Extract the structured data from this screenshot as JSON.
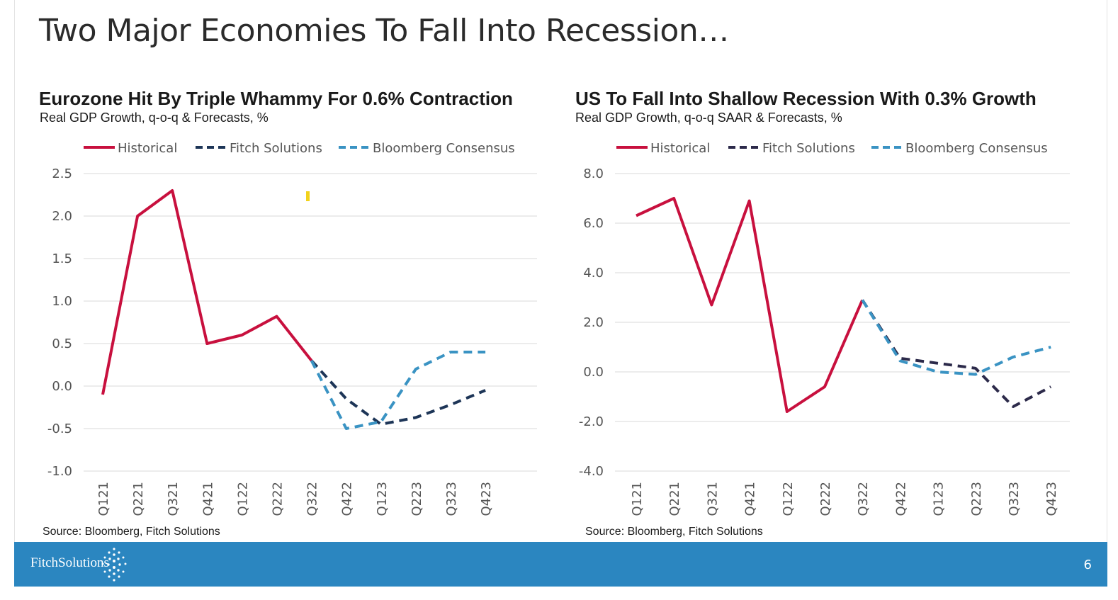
{
  "slide": {
    "title": "Two Major Economies To Fall Into Recession…",
    "page_number": "6",
    "brand": "FitchSolutions"
  },
  "colors": {
    "historical": "#c8103e",
    "fitch_eu": "#1d3557",
    "fitch_us": "#2c2a4a",
    "bloomberg": "#3a93c3",
    "footer": "#2b86c0"
  },
  "chart_data": [
    {
      "type": "line",
      "title": "Eurozone Hit By Triple Whammy For 0.6% Contraction",
      "subtitle": "Real GDP Growth, q-o-q & Forecasts, %",
      "source": "Source: Bloomberg, Fitch Solutions",
      "categories": [
        "Q121",
        "Q221",
        "Q321",
        "Q421",
        "Q122",
        "Q222",
        "Q322",
        "Q422",
        "Q123",
        "Q223",
        "Q323",
        "Q423"
      ],
      "ylim": [
        -1.0,
        2.5
      ],
      "yticks": [
        "2.5",
        "2.0",
        "1.5",
        "1.0",
        "0.5",
        "0.0",
        "-0.5",
        "-1.0"
      ],
      "ytick_values": [
        2.5,
        2.0,
        1.5,
        1.0,
        0.5,
        0.0,
        -0.5,
        -1.0
      ],
      "legend_position": "top",
      "grid": true,
      "series": [
        {
          "name": "Historical",
          "style": "solid",
          "color_key": "historical",
          "values": [
            -0.1,
            2.0,
            2.3,
            0.5,
            0.6,
            0.82,
            0.3,
            null,
            null,
            null,
            null,
            null
          ]
        },
        {
          "name": "Fitch Solutions",
          "style": "dashed",
          "color_key": "fitch_eu",
          "values": [
            null,
            null,
            null,
            null,
            null,
            null,
            0.3,
            -0.15,
            -0.45,
            -0.37,
            -0.22,
            -0.05
          ]
        },
        {
          "name": "Bloomberg Consensus",
          "style": "dashed",
          "color_key": "bloomberg",
          "values": [
            null,
            null,
            null,
            null,
            null,
            null,
            0.3,
            -0.5,
            -0.42,
            0.2,
            0.4,
            0.4
          ]
        }
      ]
    },
    {
      "type": "line",
      "title": "US To Fall Into Shallow Recession With 0.3% Growth",
      "subtitle": "Real GDP Growth, q-o-q SAAR & Forecasts, %",
      "source": "Source: Bloomberg, Fitch Solutions",
      "categories": [
        "Q121",
        "Q221",
        "Q321",
        "Q421",
        "Q122",
        "Q222",
        "Q322",
        "Q422",
        "Q123",
        "Q223",
        "Q323",
        "Q423"
      ],
      "ylim": [
        -4.0,
        8.0
      ],
      "yticks": [
        "8.0",
        "6.0",
        "4.0",
        "2.0",
        "0.0",
        "-2.0",
        "-4.0"
      ],
      "ytick_values": [
        8.0,
        6.0,
        4.0,
        2.0,
        0.0,
        -2.0,
        -4.0
      ],
      "legend_position": "top",
      "grid": true,
      "series": [
        {
          "name": "Historical",
          "style": "solid",
          "color_key": "historical",
          "values": [
            6.3,
            7.0,
            2.7,
            6.9,
            -1.6,
            -0.6,
            2.9,
            null,
            null,
            null,
            null,
            null
          ]
        },
        {
          "name": "Fitch Solutions",
          "style": "dashed",
          "color_key": "fitch_us",
          "values": [
            null,
            null,
            null,
            null,
            null,
            null,
            2.9,
            0.55,
            0.35,
            0.15,
            -1.4,
            -0.6
          ]
        },
        {
          "name": "Bloomberg Consensus",
          "style": "dashed",
          "color_key": "bloomberg",
          "values": [
            null,
            null,
            null,
            null,
            null,
            null,
            2.9,
            0.45,
            0.0,
            -0.1,
            0.6,
            1.0
          ]
        }
      ]
    }
  ]
}
